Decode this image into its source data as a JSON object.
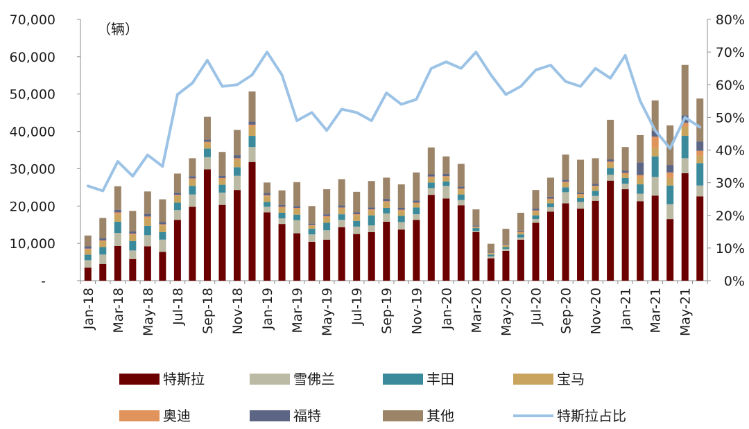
{
  "chart_data": {
    "type": "bar",
    "stacked": true,
    "unit_label": "（辆）",
    "categories": [
      "Jan-18",
      "Feb-18",
      "Mar-18",
      "Apr-18",
      "May-18",
      "Jun-18",
      "Jul-18",
      "Aug-18",
      "Sep-18",
      "Oct-18",
      "Nov-18",
      "Dec-18",
      "Jan-19",
      "Feb-19",
      "Mar-19",
      "Apr-19",
      "May-19",
      "Jun-19",
      "Jul-19",
      "Aug-19",
      "Sep-19",
      "Oct-19",
      "Nov-19",
      "Dec-19",
      "Jan-20",
      "Feb-20",
      "Mar-20",
      "Apr-20",
      "May-20",
      "Jun-20",
      "Jul-20",
      "Aug-20",
      "Sep-20",
      "Oct-20",
      "Nov-20",
      "Dec-20",
      "Jan-21",
      "Feb-21",
      "Mar-21",
      "Apr-21",
      "May-21",
      "Jun-21"
    ],
    "x_tick_labels": [
      "Jan-18",
      "Mar-18",
      "May-18",
      "Jul-18",
      "Sep-18",
      "Nov-18",
      "Jan-19",
      "Mar-19",
      "May-19",
      "Jul-19",
      "Sep-19",
      "Nov-19",
      "Jan-20",
      "Mar-20",
      "May-20",
      "Jul-20",
      "Sep-20",
      "Nov-20",
      "Jan-21",
      "Mar-21",
      "May-21"
    ],
    "y_left": {
      "ylim": [
        0,
        70000
      ],
      "tick_labels": [
        "-",
        "10,000",
        "20,000",
        "30,000",
        "40,000",
        "50,000",
        "60,000",
        "70,000"
      ]
    },
    "y_right": {
      "ylim": [
        0,
        80
      ],
      "tick_labels": [
        "0%",
        "10%",
        "20%",
        "30%",
        "40%",
        "50%",
        "60%",
        "70%",
        "80%"
      ]
    },
    "grid": false,
    "legend_position": "bottom",
    "series": [
      {
        "name": "特斯拉",
        "color": "#6b0000",
        "values": [
          3500,
          4500,
          9300,
          5800,
          9200,
          7700,
          16300,
          19800,
          29800,
          20300,
          24300,
          31800,
          18300,
          15200,
          12700,
          10400,
          11000,
          14300,
          12500,
          13000,
          15800,
          13700,
          16300,
          23000,
          22000,
          20200,
          13000,
          6000,
          8000,
          11000,
          15500,
          18500,
          20700,
          19300,
          21400,
          26800,
          24500,
          21300,
          22800,
          16500,
          28800,
          22600
        ]
      },
      {
        "name": "雪佛兰",
        "color": "#bbbaa5",
        "values": [
          2000,
          2500,
          3500,
          2300,
          3000,
          3300,
          2600,
          3300,
          3300,
          3300,
          3800,
          4000,
          1500,
          1500,
          3500,
          2000,
          2500,
          2000,
          2000,
          1800,
          2200,
          2000,
          1500,
          1800,
          3400,
          1400,
          300,
          500,
          500,
          600,
          1000,
          1200,
          3000,
          1800,
          1300,
          1600,
          1500,
          2000,
          5000,
          4000,
          4000,
          2900
        ]
      },
      {
        "name": "丰田",
        "color": "#3a8a9b",
        "values": [
          1500,
          2000,
          3000,
          2500,
          2500,
          2000,
          2000,
          2300,
          2300,
          2100,
          2300,
          3000,
          1300,
          1500,
          1500,
          1500,
          2000,
          1500,
          1500,
          2700,
          1500,
          1700,
          1800,
          1500,
          1200,
          1500,
          800,
          500,
          500,
          800,
          1000,
          1000,
          1300,
          1000,
          1400,
          1800,
          1500,
          2500,
          5500,
          5000,
          6000,
          6000
        ]
      },
      {
        "name": "宝马",
        "color": "#c8a45e",
        "values": [
          1300,
          1500,
          2000,
          1700,
          2000,
          1800,
          1800,
          1700,
          1500,
          1500,
          2000,
          2500,
          1500,
          1300,
          1500,
          800,
          1500,
          1500,
          1500,
          1300,
          1500,
          1300,
          1000,
          1300,
          1100,
          1300,
          300,
          400,
          500,
          500,
          1000,
          1000,
          1200,
          800,
          1000,
          1300,
          1000,
          1700,
          2300,
          2000,
          2500,
          2000
        ]
      },
      {
        "name": "奥迪",
        "color": "#e0935a",
        "values": [
          300,
          300,
          500,
          300,
          500,
          300,
          300,
          300,
          300,
          300,
          400,
          500,
          300,
          300,
          300,
          200,
          300,
          300,
          300,
          300,
          300,
          300,
          300,
          300,
          300,
          300,
          100,
          100,
          100,
          200,
          300,
          300,
          300,
          300,
          300,
          400,
          400,
          800,
          3000,
          1500,
          1000,
          1300
        ]
      },
      {
        "name": "福特",
        "color": "#5c6584",
        "values": [
          600,
          600,
          700,
          600,
          700,
          600,
          600,
          600,
          600,
          600,
          800,
          800,
          600,
          500,
          500,
          400,
          500,
          600,
          500,
          500,
          600,
          500,
          600,
          600,
          600,
          500,
          300,
          200,
          200,
          300,
          500,
          500,
          500,
          400,
          500,
          600,
          600,
          3400,
          1500,
          2000,
          2000,
          2500
        ]
      },
      {
        "name": "其他",
        "color": "#9c8468",
        "values": [
          2900,
          5400,
          6300,
          5500,
          6000,
          6100,
          5100,
          4800,
          6100,
          6400,
          6800,
          8100,
          2800,
          3900,
          6400,
          4700,
          6700,
          7000,
          5500,
          7100,
          5700,
          6300,
          7500,
          7200,
          4700,
          6100,
          4300,
          2200,
          4100,
          4800,
          5000,
          5100,
          6800,
          8800,
          6900,
          10600,
          6300,
          7300,
          8200,
          10600,
          13500,
          11500
        ]
      },
      {
        "name": "特斯拉占比",
        "type": "line",
        "color": "#9cc3e6",
        "values": [
          29,
          27.5,
          36.5,
          32,
          38.5,
          35,
          57,
          60.5,
          67.5,
          59.5,
          60,
          63,
          70,
          63,
          49,
          51.5,
          46,
          52.5,
          51.5,
          49,
          57.5,
          54,
          55.5,
          65,
          67,
          65,
          70,
          63,
          57,
          59.5,
          64.5,
          66,
          61,
          59.5,
          65,
          62,
          69,
          55,
          46,
          40.5,
          50,
          47
        ]
      }
    ]
  }
}
